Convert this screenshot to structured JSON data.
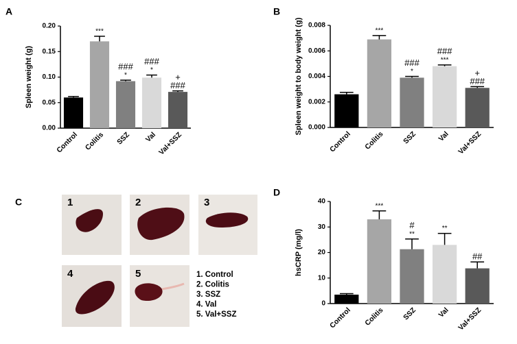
{
  "chart_data": [
    {
      "type": "bar",
      "panel": "A",
      "ylabel": "Spleen weight (g)",
      "categories": [
        "Control",
        "Colitis",
        "SSZ",
        "Val",
        "Val+SSZ"
      ],
      "values": [
        0.06,
        0.17,
        0.092,
        0.099,
        0.071
      ],
      "errors": [
        0.002,
        0.01,
        0.002,
        0.005,
        0.002
      ],
      "colors": [
        "#000000",
        "#a6a6a6",
        "#808080",
        "#d9d9d9",
        "#595959"
      ],
      "annotations": [
        [],
        [
          "***"
        ],
        [
          "###",
          "*"
        ],
        [
          "###",
          "*"
        ],
        [
          "+",
          "###"
        ]
      ],
      "ylim": [
        0,
        0.2
      ],
      "yticks": [
        {
          "value": 0,
          "label": "0.00"
        },
        {
          "value": 0.05,
          "label": "0.05"
        },
        {
          "value": 0.1,
          "label": "0.10"
        },
        {
          "value": 0.15,
          "label": "0.15"
        },
        {
          "value": 0.2,
          "label": "0.20"
        }
      ]
    },
    {
      "type": "bar",
      "panel": "B",
      "ylabel": "Spleen weight to body weight (g)",
      "categories": [
        "Control",
        "Colitis",
        "SSZ",
        "Val",
        "Val+SSZ"
      ],
      "values": [
        0.0026,
        0.0069,
        0.0039,
        0.0048,
        0.0031
      ],
      "errors": [
        0.00015,
        0.0003,
        0.0001,
        0.0001,
        0.0001
      ],
      "colors": [
        "#000000",
        "#a6a6a6",
        "#808080",
        "#d9d9d9",
        "#595959"
      ],
      "annotations": [
        [],
        [
          "***"
        ],
        [
          "###",
          "*"
        ],
        [
          "###",
          "***"
        ],
        [
          "+",
          "###"
        ]
      ],
      "ylim": [
        0,
        0.008
      ],
      "yticks": [
        {
          "value": 0,
          "label": "0.000"
        },
        {
          "value": 0.002,
          "label": "0.002"
        },
        {
          "value": 0.004,
          "label": "0.004"
        },
        {
          "value": 0.006,
          "label": "0.006"
        },
        {
          "value": 0.008,
          "label": "0.008"
        }
      ]
    },
    {
      "type": "bar",
      "panel": "D",
      "ylabel": "hsCRP (mg/l)",
      "categories": [
        "Control",
        "Colitis",
        "SSZ",
        "Val",
        "Val+SSZ"
      ],
      "values": [
        3.5,
        33,
        21.3,
        23,
        13.8
      ],
      "errors": [
        0.4,
        3.3,
        4,
        4.5,
        2.5
      ],
      "colors": [
        "#000000",
        "#a6a6a6",
        "#808080",
        "#d9d9d9",
        "#595959"
      ],
      "annotations": [
        [],
        [
          "***"
        ],
        [
          "#",
          "**"
        ],
        [
          "**"
        ],
        [
          "##"
        ]
      ],
      "ylim": [
        0,
        40
      ],
      "yticks": [
        0,
        10,
        20,
        30,
        40
      ]
    }
  ],
  "photo_panel": {
    "panel": "C",
    "images": [
      "1",
      "2",
      "3",
      "4",
      "5"
    ],
    "legend": [
      "1. Control",
      "2. Colitis",
      "3. SSZ",
      "4. Val",
      "5. Val+SSZ"
    ]
  }
}
